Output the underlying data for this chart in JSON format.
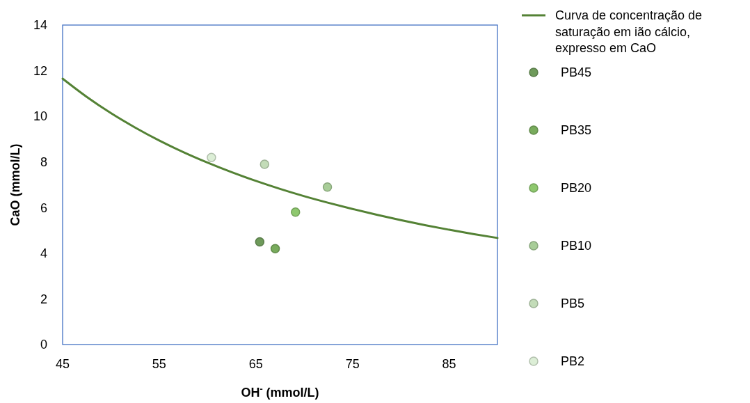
{
  "chart_data": {
    "type": "scatter",
    "xlabel": "OH$^{-}$ (mmol/L)",
    "ylabel": "CaO (mmol/L)",
    "xlim": [
      45,
      90
    ],
    "xticks": [
      45,
      55,
      65,
      75,
      85
    ],
    "ylim": [
      0,
      14
    ],
    "yticks": [
      0,
      2,
      4,
      6,
      8,
      10,
      12,
      14
    ],
    "grid": false,
    "legend": "right",
    "marker": "circle",
    "series": [
      {
        "type": "line",
        "name": "Curva de concentração de saturação em ião cálcio, expresso em CaO",
        "color": "#548235",
        "marker": "none",
        "line_style": "solid",
        "x": [
          45,
          47.5,
          50,
          52.5,
          55,
          57.5,
          60,
          62.5,
          65,
          67.5,
          70,
          72.5,
          75,
          77.5,
          80,
          82.5,
          85,
          87.5,
          90
        ],
        "values": [
          11.65,
          10.85,
          10.14,
          9.51,
          8.94,
          8.43,
          7.97,
          7.55,
          7.17,
          6.82,
          6.5,
          6.21,
          5.94,
          5.69,
          5.45,
          5.23,
          5.03,
          4.84,
          4.67
        ]
      },
      {
        "name": "PB45",
        "color": "#6e9a5a",
        "x": [
          65.4
        ],
        "values": [
          4.5
        ]
      },
      {
        "name": "PB35",
        "color": "#78ab5c",
        "x": [
          67.0
        ],
        "values": [
          4.2
        ]
      },
      {
        "name": "PB20",
        "color": "#8ec86e",
        "x": [
          69.1
        ],
        "values": [
          5.8
        ]
      },
      {
        "name": "PB10",
        "color": "#a8cd98",
        "x": [
          72.4
        ],
        "values": [
          6.9
        ]
      },
      {
        "name": "PB5",
        "color": "#c3dcb8",
        "x": [
          65.9
        ],
        "values": [
          7.9
        ]
      },
      {
        "name": "PB2",
        "color": "#dceed6",
        "x": [
          60.4
        ],
        "values": [
          8.2
        ]
      }
    ]
  }
}
